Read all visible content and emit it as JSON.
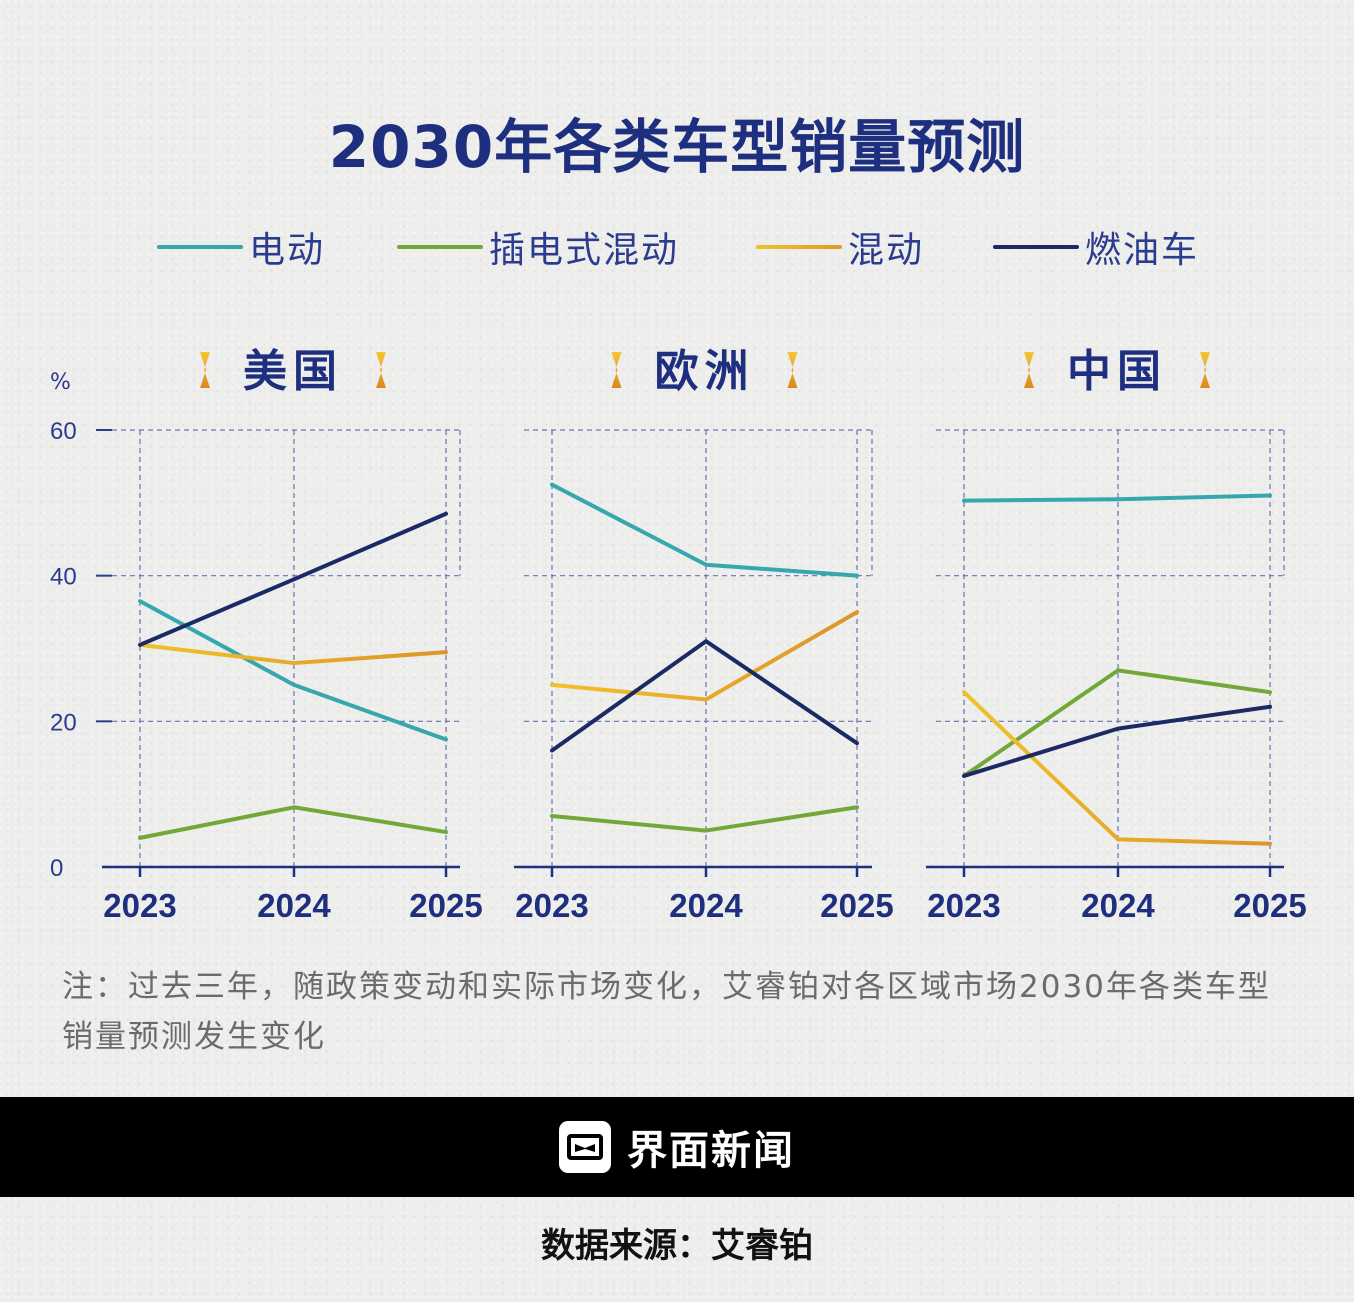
{
  "title": "2030年各类车型销量预测",
  "legend": [
    {
      "label": "电动",
      "color": "#36a7ad"
    },
    {
      "label": "插电式混动",
      "color": "#72a83a"
    },
    {
      "label": "混动",
      "color": "#f0c22a"
    },
    {
      "label": "燃油车",
      "color": "#1b2a64"
    }
  ],
  "unit": "%",
  "chart_data": [
    {
      "type": "line",
      "title": "美国",
      "x": [
        "2023",
        "2024",
        "2025"
      ],
      "ylim": [
        0,
        60
      ],
      "yticks": [
        0,
        20,
        40,
        60
      ],
      "grid": true,
      "series": [
        {
          "name": "电动",
          "values": [
            36.5,
            25.0,
            17.5
          ]
        },
        {
          "name": "插电式混动",
          "values": [
            4.0,
            8.2,
            4.8
          ]
        },
        {
          "name": "混动",
          "values": [
            30.5,
            28.0,
            29.5
          ]
        },
        {
          "name": "燃油车",
          "values": [
            30.5,
            39.5,
            48.5
          ]
        }
      ]
    },
    {
      "type": "line",
      "title": "欧洲",
      "x": [
        "2023",
        "2024",
        "2025"
      ],
      "ylim": [
        0,
        60
      ],
      "yticks": [
        0,
        20,
        40,
        60
      ],
      "grid": true,
      "series": [
        {
          "name": "电动",
          "values": [
            52.5,
            41.5,
            40.0
          ]
        },
        {
          "name": "插电式混动",
          "values": [
            7.0,
            5.0,
            8.2
          ]
        },
        {
          "name": "混动",
          "values": [
            25.0,
            23.0,
            35.0
          ]
        },
        {
          "name": "燃油车",
          "values": [
            16.0,
            31.0,
            17.0
          ]
        }
      ]
    },
    {
      "type": "line",
      "title": "中国",
      "x": [
        "2023",
        "2024",
        "2025"
      ],
      "ylim": [
        0,
        60
      ],
      "yticks": [
        0,
        20,
        40,
        60
      ],
      "grid": true,
      "series": [
        {
          "name": "电动",
          "values": [
            50.3,
            50.5,
            51.0
          ]
        },
        {
          "name": "插电式混动",
          "values": [
            12.5,
            27.0,
            24.0
          ]
        },
        {
          "name": "混动",
          "values": [
            24.0,
            3.8,
            3.2
          ]
        },
        {
          "name": "燃油车",
          "values": [
            12.5,
            19.0,
            22.0
          ]
        }
      ]
    }
  ],
  "note": "注：过去三年，随政策变动和实际市场变化，艾睿铂对各区域市场2030年各类车型销量预测发生变化",
  "footer": {
    "brand": "界面新闻"
  },
  "source": "数据来源：艾睿铂"
}
